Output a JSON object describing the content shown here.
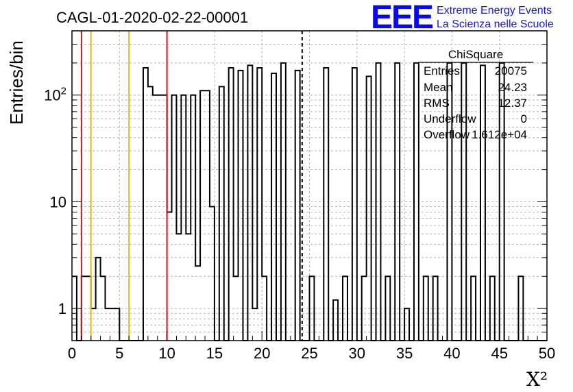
{
  "chart_data": {
    "type": "histogram",
    "title": "CAGL-01-2020-02-22-00001",
    "xlabel": "X²",
    "ylabel": "Entries/bin",
    "xlim": [
      0,
      50
    ],
    "ylim": [
      0.5,
      400
    ],
    "yscale": "log",
    "grid": true,
    "bin_width": 0.5,
    "x_ticks": [
      0,
      5,
      10,
      15,
      20,
      25,
      30,
      35,
      40,
      45,
      50
    ],
    "y_ticks": [
      {
        "value": 1,
        "label": "1"
      },
      {
        "value": 10,
        "label": "10"
      },
      {
        "value": 100,
        "label": "10²"
      }
    ],
    "values": [
      2,
      0,
      2,
      2,
      1,
      3,
      2,
      1,
      1,
      1,
      0,
      0,
      0,
      0,
      0,
      180,
      120,
      100,
      100,
      100,
      8,
      100,
      5,
      100,
      5,
      100,
      2.5,
      110,
      110,
      9,
      0,
      120,
      0,
      180,
      2,
      170,
      0,
      190,
      1,
      180,
      2,
      0,
      160,
      0,
      200,
      0,
      0,
      170,
      0,
      0,
      2,
      0,
      0,
      180,
      0,
      1.2,
      0,
      2,
      0,
      180,
      0,
      2,
      150,
      0,
      200,
      0,
      2,
      0,
      200,
      0,
      1,
      0,
      200,
      0,
      2,
      0,
      2,
      0,
      0,
      200,
      0,
      0,
      200,
      0,
      2,
      0,
      190,
      0,
      2,
      0,
      200,
      0,
      0,
      0,
      2,
      0,
      0,
      0,
      0,
      0
    ],
    "vertical_lines": [
      {
        "x": 1,
        "color": "#e01010",
        "style": "solid"
      },
      {
        "x": 2,
        "color": "#f0b800",
        "style": "solid"
      },
      {
        "x": 6,
        "color": "#f0b800",
        "style": "solid"
      },
      {
        "x": 10,
        "color": "#e01010",
        "style": "solid"
      },
      {
        "x": 24.23,
        "color": "#000000",
        "style": "dashed"
      }
    ],
    "colors": {
      "histogram": "#000000",
      "grid": "#b0b0b0"
    },
    "stats_box": {
      "title": "ChiSquare",
      "rows": [
        {
          "label": "Entries",
          "value": "20075"
        },
        {
          "label": "Mean",
          "value": "24.23"
        },
        {
          "label": "RMS",
          "value": "12.37"
        },
        {
          "label": "Underflow",
          "value": "0"
        },
        {
          "label": "Overflow",
          "value": "1.612e+04"
        }
      ]
    },
    "logo": {
      "mark": "EEE",
      "line1": "Extreme Energy Events",
      "line2": "La Scienza nelle Scuole"
    }
  }
}
